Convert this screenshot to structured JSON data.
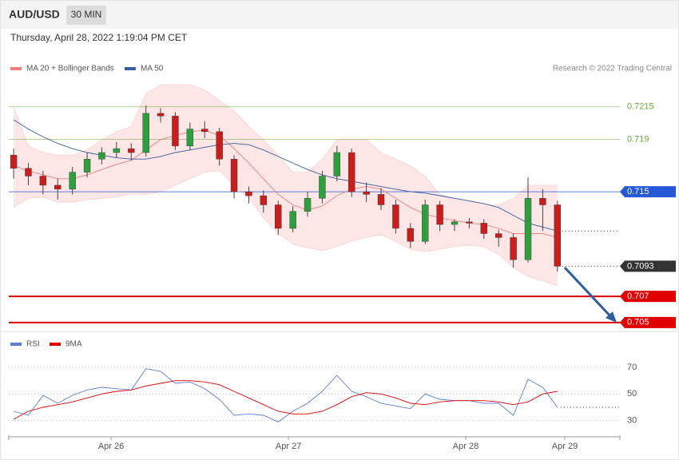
{
  "chart_data": [
    {
      "type": "candlestick",
      "title": "AUD/USD",
      "interval": "30 MIN",
      "subtitle": "Thursday, April 28, 2022 1:19:04 PM CET",
      "credit": "Research © 2022 Trading Central",
      "up_color": "#2e9e3e",
      "down_color": "#c81e1e",
      "xlim": [
        -0.33,
        41.25
      ],
      "ylim": [
        0.7045,
        0.7235
      ],
      "open": [
        0.7178,
        0.7168,
        0.7162,
        0.7155,
        0.7152,
        0.7165,
        0.7175,
        0.718,
        0.7183,
        0.718,
        0.721,
        0.7208,
        0.7185,
        0.7198,
        0.7196,
        0.7175,
        0.715,
        0.7147,
        0.714,
        0.7122,
        0.7135,
        0.7145,
        0.7162,
        0.718,
        0.715,
        0.7148,
        0.714,
        0.7122,
        0.7112,
        0.714,
        0.7125,
        0.7127,
        0.7126,
        0.7118,
        0.7115,
        0.7098,
        0.7145,
        0.714
      ],
      "high": [
        0.7183,
        0.7172,
        0.7166,
        0.716,
        0.7169,
        0.718,
        0.7184,
        0.7188,
        0.7187,
        0.7216,
        0.7214,
        0.7211,
        0.7203,
        0.7204,
        0.7199,
        0.7178,
        0.7154,
        0.7151,
        0.7143,
        0.7139,
        0.715,
        0.7166,
        0.7185,
        0.7183,
        0.7157,
        0.7153,
        0.7144,
        0.7126,
        0.7144,
        0.7143,
        0.7129,
        0.713,
        0.7129,
        0.7121,
        0.7118,
        0.7161,
        0.7152,
        0.7143
      ],
      "low": [
        0.716,
        0.7155,
        0.7148,
        0.7144,
        0.7148,
        0.7161,
        0.7171,
        0.7176,
        0.7174,
        0.7177,
        0.7203,
        0.7182,
        0.7182,
        0.7191,
        0.717,
        0.7145,
        0.7141,
        0.7134,
        0.7117,
        0.7119,
        0.7131,
        0.7141,
        0.7158,
        0.7146,
        0.7142,
        0.7136,
        0.7118,
        0.7107,
        0.711,
        0.712,
        0.712,
        0.7122,
        0.7114,
        0.7108,
        0.7092,
        0.7096,
        0.712,
        0.7089
      ],
      "close": [
        0.7168,
        0.7162,
        0.7155,
        0.7152,
        0.7165,
        0.7175,
        0.718,
        0.7183,
        0.718,
        0.721,
        0.7208,
        0.7185,
        0.7198,
        0.7196,
        0.7175,
        0.715,
        0.7147,
        0.714,
        0.7122,
        0.7135,
        0.7145,
        0.7162,
        0.718,
        0.715,
        0.7148,
        0.714,
        0.7122,
        0.7112,
        0.714,
        0.7125,
        0.7127,
        0.7126,
        0.7118,
        0.7115,
        0.7098,
        0.7145,
        0.714,
        0.7093
      ],
      "series": [
        {
          "name": "MA 20 + Bollinger Bands",
          "color": "#f08080",
          "values": [
            0.717,
            0.7166,
            0.7163,
            0.716,
            0.716,
            0.7163,
            0.7167,
            0.7171,
            0.7174,
            0.7182,
            0.719,
            0.7193,
            0.7196,
            0.7197,
            0.7193,
            0.7183,
            0.7172,
            0.716,
            0.7148,
            0.714,
            0.7136,
            0.7139,
            0.7147,
            0.7152,
            0.7154,
            0.7152,
            0.7145,
            0.7138,
            0.7133,
            0.713,
            0.7128,
            0.7126,
            0.7125,
            0.7122,
            0.7118,
            0.7118,
            0.7118,
            0.7115
          ],
          "upper": [
            0.7215,
            0.7185,
            0.718,
            0.7178,
            0.7178,
            0.7182,
            0.719,
            0.7196,
            0.72,
            0.7225,
            0.7232,
            0.7232,
            0.7232,
            0.7228,
            0.722,
            0.7212,
            0.72,
            0.719,
            0.7178,
            0.7165,
            0.7165,
            0.7175,
            0.719,
            0.719,
            0.719,
            0.718,
            0.7175,
            0.717,
            0.7162,
            0.7148,
            0.7145,
            0.7143,
            0.714,
            0.714,
            0.7145,
            0.7155,
            0.7155,
            0.7155
          ],
          "lower": [
            0.7138,
            0.7145,
            0.7146,
            0.7142,
            0.7142,
            0.7144,
            0.7145,
            0.7146,
            0.7148,
            0.7148,
            0.715,
            0.7155,
            0.716,
            0.7165,
            0.7166,
            0.7155,
            0.7145,
            0.713,
            0.7118,
            0.711,
            0.7107,
            0.7105,
            0.7108,
            0.7112,
            0.7115,
            0.7117,
            0.7112,
            0.7106,
            0.7104,
            0.7106,
            0.7108,
            0.7109,
            0.7108,
            0.7102,
            0.7092,
            0.7085,
            0.7082,
            0.7078
          ]
        },
        {
          "name": "MA 50",
          "color": "#3a5da0",
          "values": [
            0.7205,
            0.7198,
            0.7192,
            0.7187,
            0.7183,
            0.718,
            0.7178,
            0.7176,
            0.7175,
            0.7175,
            0.7177,
            0.718,
            0.7182,
            0.7184,
            0.7186,
            0.7187,
            0.7186,
            0.7182,
            0.7177,
            0.7172,
            0.7167,
            0.7163,
            0.716,
            0.7158,
            0.7156,
            0.7154,
            0.7152,
            0.715,
            0.7149,
            0.7147,
            0.7145,
            0.7143,
            0.7141,
            0.7138,
            0.7132,
            0.7126,
            0.7123,
            0.712
          ]
        }
      ],
      "levels": [
        {
          "value": 0.7215,
          "color": "#6aaa3a",
          "line": "thin",
          "box": false
        },
        {
          "value": 0.719,
          "color": "#6aaa3a",
          "line": "thin",
          "box": false
        },
        {
          "value": 0.715,
          "color": "#2458d6",
          "line": "thin",
          "box": true
        },
        {
          "value": 0.7093,
          "color": "#333333",
          "line": "dotted",
          "box": true
        },
        {
          "value": 0.707,
          "color": "#e00000",
          "line": "thick",
          "box": true
        },
        {
          "value": 0.705,
          "color": "#e00000",
          "line": "thick",
          "box": true
        }
      ]
    },
    {
      "type": "line",
      "xlim": [
        -0.33,
        41.25
      ],
      "ylim": [
        19,
        82
      ],
      "yticks": [
        30,
        50,
        70
      ],
      "grid": true,
      "xticks": [
        {
          "value": 6.63,
          "label": "Apr 26"
        },
        {
          "value": 18.7,
          "label": "Apr 27"
        },
        {
          "value": 30.76,
          "label": "Apr 28"
        },
        {
          "value": 37.5,
          "label": "Apr 29"
        }
      ],
      "series": [
        {
          "name": "RSI",
          "color": "#5b7fd6",
          "values": [
            37,
            34,
            49,
            43,
            49,
            53,
            55,
            54,
            53,
            69,
            67,
            58,
            59,
            54,
            46,
            34,
            35,
            34,
            29,
            37,
            43,
            52,
            64,
            52,
            48,
            43,
            41,
            39,
            50,
            46,
            45,
            45,
            43,
            43,
            34,
            61,
            55,
            40
          ]
        },
        {
          "name": "9MA",
          "color": "#e00000",
          "values": [
            31,
            37,
            40,
            42,
            44,
            47,
            50,
            52,
            53,
            56,
            58,
            60,
            60,
            59,
            57,
            52,
            47,
            42,
            37,
            35,
            35,
            37,
            42,
            48,
            51,
            50,
            47,
            43,
            42,
            44,
            45,
            45,
            45,
            44,
            42,
            44,
            50,
            52
          ]
        }
      ]
    }
  ]
}
